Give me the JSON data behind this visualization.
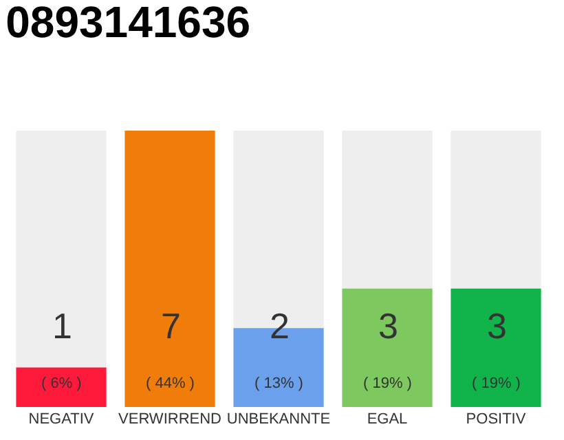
{
  "chart_data": {
    "type": "bar",
    "title": "0893141636",
    "categories": [
      "NEGATIV",
      "VERWIRREND",
      "UNBEKANNTE",
      "EGAL",
      "POSITIV"
    ],
    "values": [
      1,
      7,
      2,
      3,
      3
    ],
    "colors": [
      "#ff1a3c",
      "#f07d0a",
      "#6aa0ec",
      "#7ec95f",
      "#10b44a"
    ],
    "ylim": [
      0,
      7
    ],
    "data_labels": true,
    "tick_labels": "x",
    "annotations": [
      "( 6% )",
      "( 44% )",
      "( 13% )",
      "( 19% )",
      "( 19% )"
    ]
  }
}
